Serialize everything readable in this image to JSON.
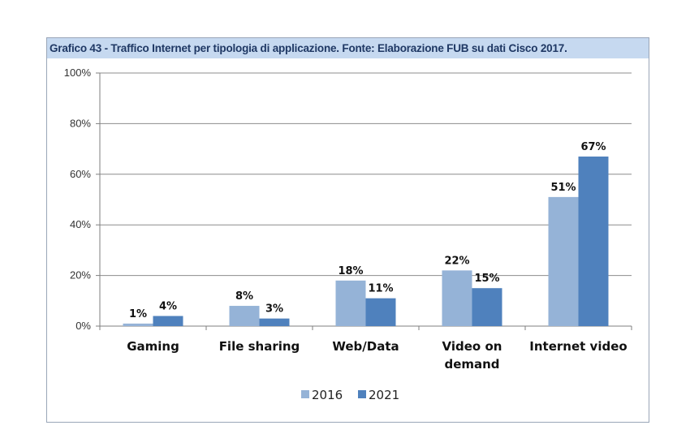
{
  "caption": "Grafico 43 - Traffico Internet per tipologia di applicazione. Fonte: Elaborazione FUB su dati Cisco 2017.",
  "chart_data": {
    "type": "bar",
    "categories": [
      [
        "Gaming"
      ],
      [
        "File sharing"
      ],
      [
        "Web/Data"
      ],
      [
        "Video on",
        "demand"
      ],
      [
        "Internet video"
      ]
    ],
    "series": [
      {
        "name": "2016",
        "values": [
          1,
          8,
          18,
          22,
          51
        ],
        "labels": [
          "1%",
          "8%",
          "18%",
          "22%",
          "51%"
        ],
        "color": "#95b3d7"
      },
      {
        "name": "2021",
        "values": [
          4,
          3,
          11,
          15,
          67
        ],
        "labels": [
          "4%",
          "3%",
          "11%",
          "15%",
          "67%"
        ],
        "color": "#4f81bd"
      }
    ],
    "ylim": [
      0,
      100
    ],
    "yticks": [
      0,
      20,
      40,
      60,
      80,
      100
    ],
    "ytick_labels": [
      "0%",
      "20%",
      "40%",
      "60%",
      "80%",
      "100%"
    ],
    "grid": true,
    "legend": "bottom"
  }
}
